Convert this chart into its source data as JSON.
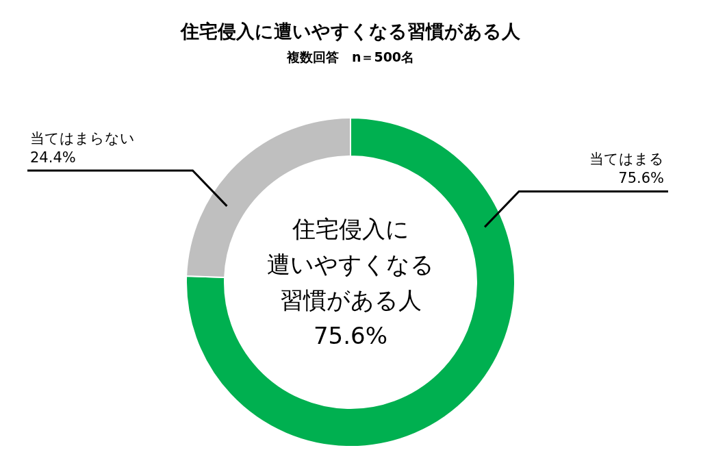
{
  "chart_data": {
    "type": "donut",
    "title": "住宅侵入に遭いやすくなる習慣がある人",
    "subtitle": "複数回答　n＝500名",
    "categories": [
      "当てはまる",
      "当てはまらない"
    ],
    "values": [
      75.6,
      24.4
    ],
    "colors": [
      "#00b050",
      "#bfbfbf"
    ],
    "value_labels": [
      "75.6%",
      "24.4%"
    ],
    "annotations": [
      "住宅侵入に",
      "遭いやすくなる",
      "習慣がある人",
      "75.6%"
    ]
  }
}
